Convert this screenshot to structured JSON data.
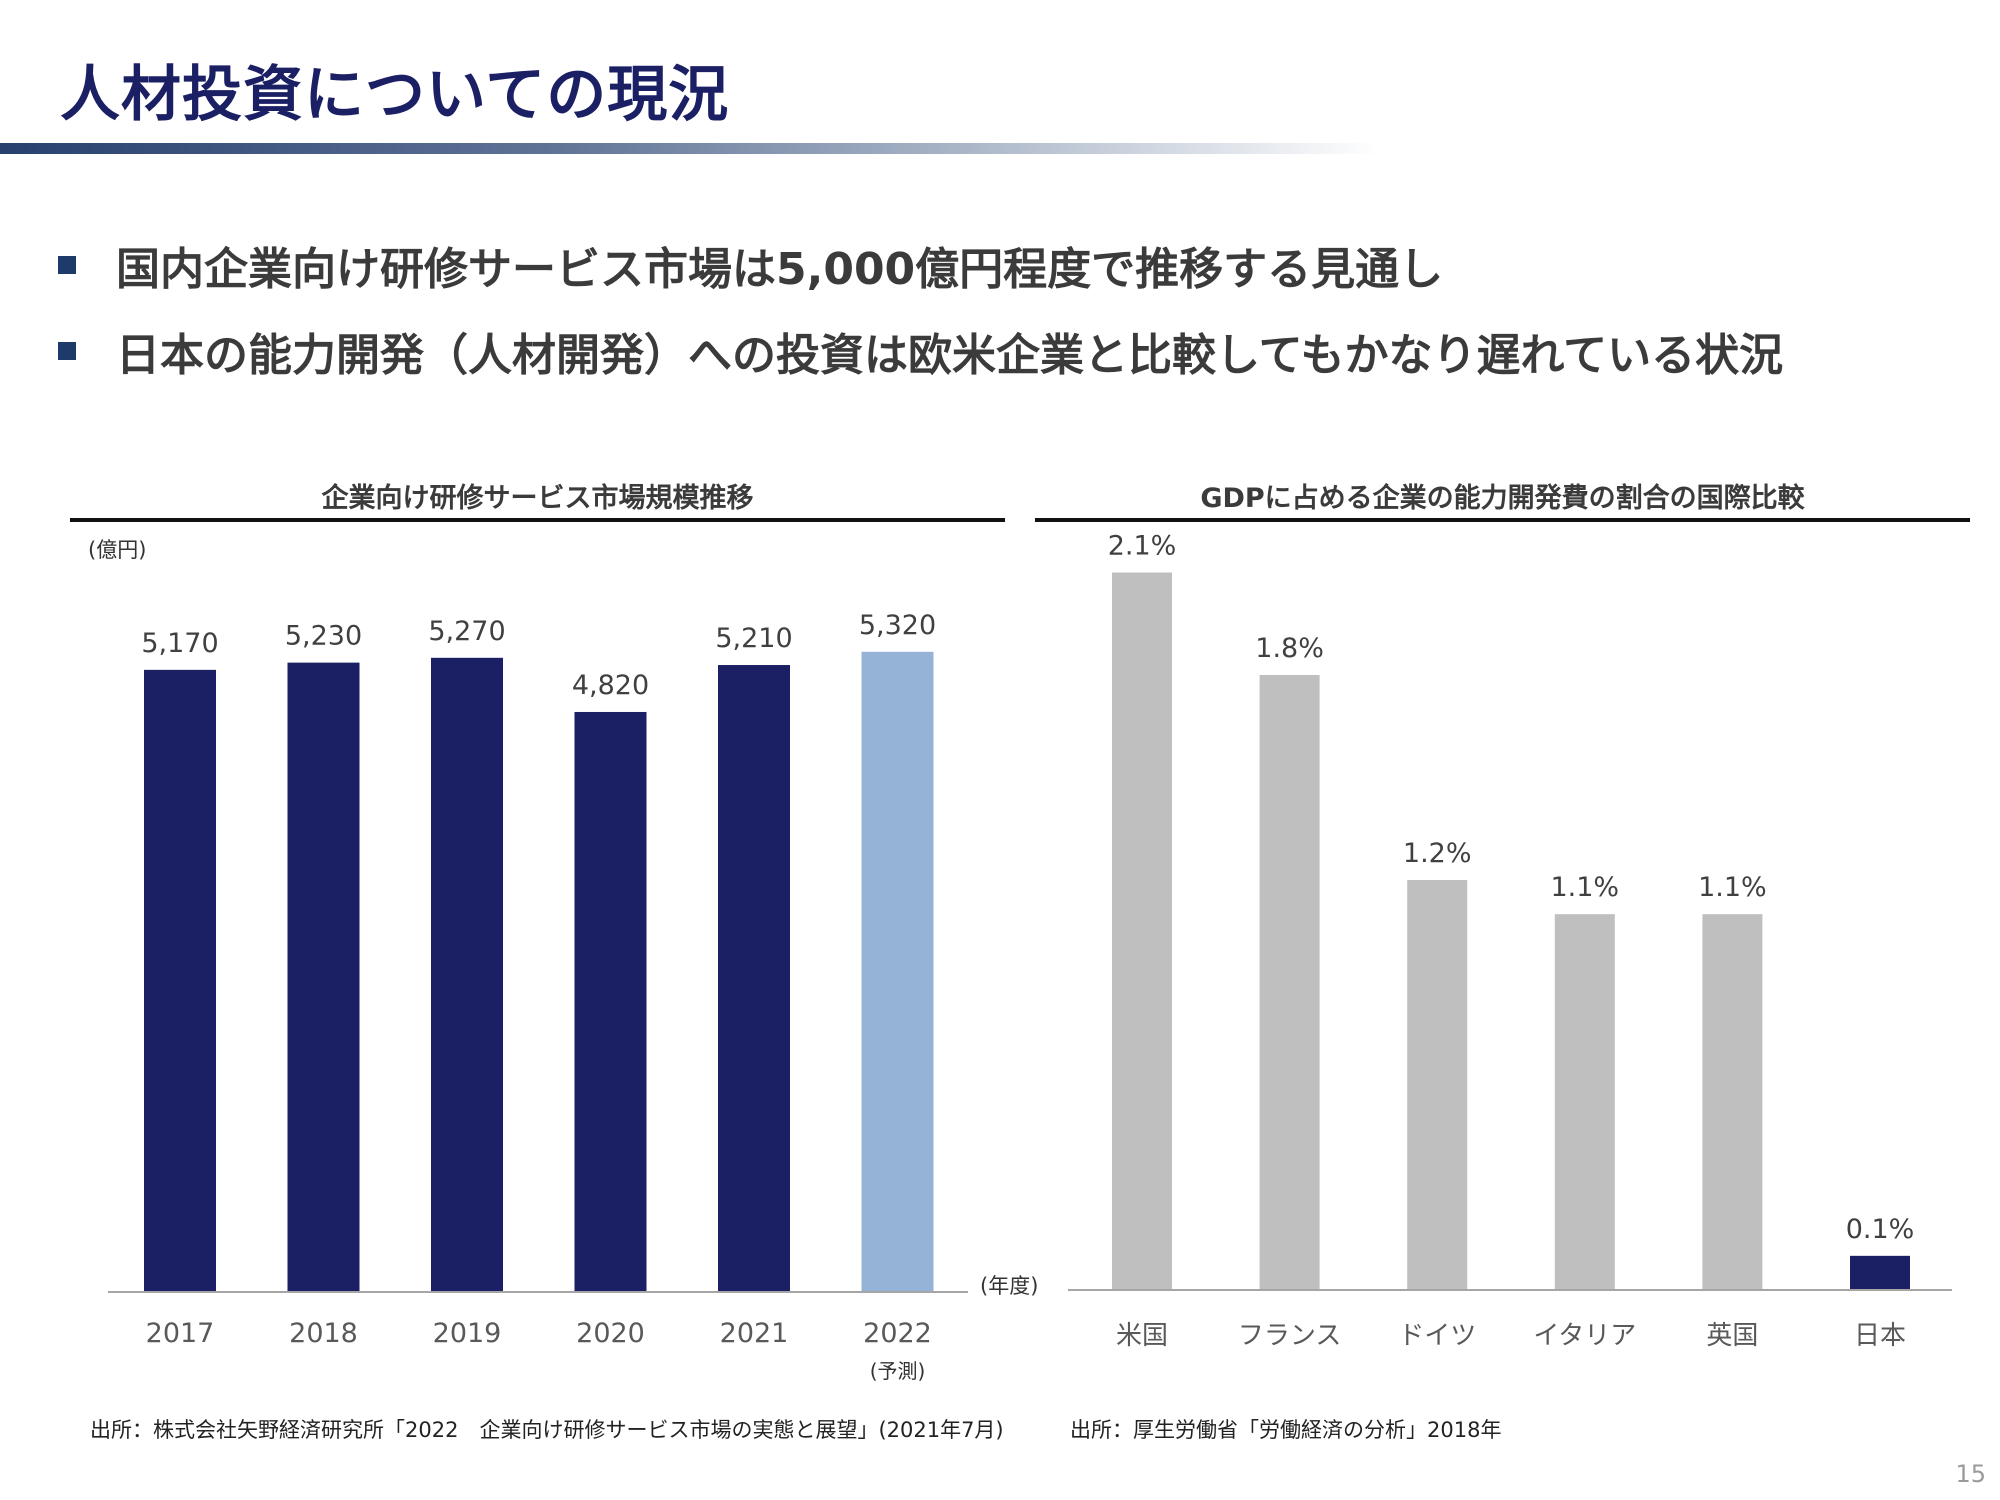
{
  "title": "人材投資についての現況",
  "bullets": [
    "国内企業向け研修サービス市場は5,000億円程度で推移する見通し",
    "日本の能力開発（人材開発）への投資は欧米企業と比較してもかなり遅れている状況"
  ],
  "colors": {
    "title": "#1b1f64",
    "navy_bar": "#1b1f64",
    "forecast_bar": "#95b3d7",
    "gray_bar": "#bfbfbf",
    "bullet_square": "#1d3a6b"
  },
  "page_number": "15",
  "left_chart": {
    "source": "出所：株式会社矢野経済研究所「2022　企業向け研修サービス市場の実態と展望」(2021年7月)"
  },
  "right_chart": {
    "source": "出所：厚生労働省「労働経済の分析」2018年"
  },
  "chart_data": [
    {
      "type": "bar",
      "title": "企業向け研修サービス市場規模推移",
      "ylabel": "(億円)",
      "xlabel": "(年度)",
      "categories": [
        "2017",
        "2018",
        "2019",
        "2020",
        "2021",
        "2022"
      ],
      "category_notes": [
        "",
        "",
        "",
        "",
        "",
        "(予測)"
      ],
      "values": [
        5170,
        5230,
        5270,
        4820,
        5210,
        5320
      ],
      "value_labels": [
        "5,170",
        "5,230",
        "5,270",
        "4,820",
        "5,210",
        "5,320"
      ],
      "ylim": [
        0,
        5900
      ],
      "grid": false,
      "bar_colors": [
        "#1b1f64",
        "#1b1f64",
        "#1b1f64",
        "#1b1f64",
        "#1b1f64",
        "#95b3d7"
      ]
    },
    {
      "type": "bar",
      "title": "GDPに占める企業の能力開発費の割合の国際比較",
      "categories": [
        "米国",
        "フランス",
        "ドイツ",
        "イタリア",
        "英国",
        "日本"
      ],
      "values": [
        2.1,
        1.8,
        1.2,
        1.1,
        1.1,
        0.1
      ],
      "value_labels": [
        "2.1%",
        "1.8%",
        "1.2%",
        "1.1%",
        "1.1%",
        "0.1%"
      ],
      "ylim": [
        0,
        2.4
      ],
      "grid": false,
      "bar_colors": [
        "#bfbfbf",
        "#bfbfbf",
        "#bfbfbf",
        "#bfbfbf",
        "#bfbfbf",
        "#1b1f64"
      ]
    }
  ]
}
